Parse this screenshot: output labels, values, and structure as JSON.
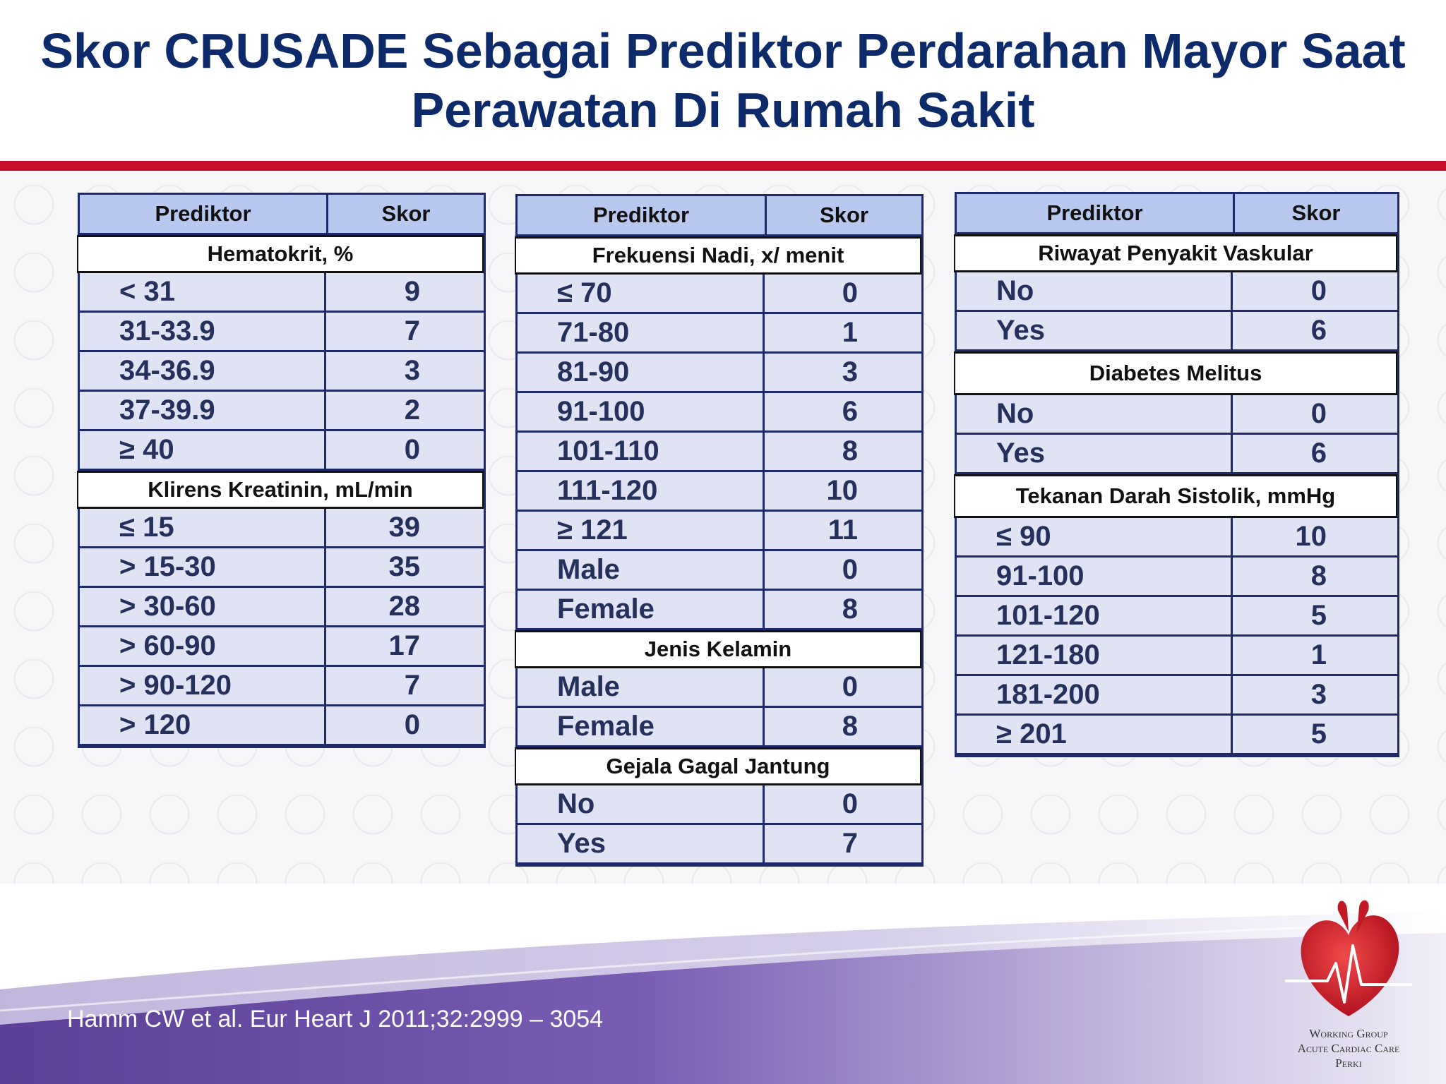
{
  "title": {
    "line1": "Skor CRUSADE Sebagai Prediktor Perdarahan Mayor Saat",
    "line2": "Perawatan Di Rumah Sakit"
  },
  "tables": [
    {
      "header": {
        "predictor": "Prediktor",
        "score": "Skor"
      },
      "sections": [
        {
          "label": "Hematokrit, %",
          "rows": [
            [
              "< 31",
              "9"
            ],
            [
              "31-33.9",
              "7"
            ],
            [
              "34-36.9",
              "3"
            ],
            [
              "37-39.9",
              "2"
            ],
            [
              "≥ 40",
              "0"
            ]
          ]
        },
        {
          "label": "Klirens Kreatinin, mL/min",
          "rows": [
            [
              "≤ 15",
              "39"
            ],
            [
              "> 15-30",
              "35"
            ],
            [
              "> 30-60",
              "28"
            ],
            [
              "> 60-90",
              "17"
            ],
            [
              "> 90-120",
              "7"
            ],
            [
              "> 120",
              "0"
            ]
          ]
        }
      ]
    },
    {
      "header": {
        "predictor": "Prediktor",
        "score": "Skor"
      },
      "sections": [
        {
          "label": "Frekuensi Nadi, x/ menit",
          "rows": [
            [
              "≤ 70",
              "0"
            ],
            [
              "71-80",
              "1"
            ],
            [
              "81-90",
              "3"
            ],
            [
              "91-100",
              "6"
            ],
            [
              "101-110",
              "8"
            ],
            [
              "111-120",
              "10"
            ],
            [
              "≥ 121",
              "11"
            ],
            [
              "Male",
              "0"
            ],
            [
              "Female",
              "8"
            ]
          ]
        },
        {
          "label": "Jenis Kelamin",
          "rows": [
            [
              "Male",
              "0"
            ],
            [
              "Female",
              "8"
            ]
          ]
        },
        {
          "label": "Gejala Gagal Jantung",
          "rows": [
            [
              "No",
              "0"
            ],
            [
              "Yes",
              "7"
            ]
          ]
        }
      ]
    },
    {
      "header": {
        "predictor": "Prediktor",
        "score": "Skor"
      },
      "sections": [
        {
          "label": "Riwayat Penyakit Vaskular",
          "rows": [
            [
              "No",
              "0"
            ],
            [
              "Yes",
              "6"
            ]
          ]
        },
        {
          "label": "Diabetes Melitus",
          "rows": [
            [
              "No",
              "0"
            ],
            [
              "Yes",
              "6"
            ]
          ]
        },
        {
          "label": "Tekanan Darah Sistolik, mmHg",
          "rows": [
            [
              "≤ 90",
              "10"
            ],
            [
              "91-100",
              "8"
            ],
            [
              "101-120",
              "5"
            ],
            [
              "121-180",
              "1"
            ],
            [
              "181-200",
              "3"
            ],
            [
              "≥ 201",
              "5"
            ]
          ]
        }
      ]
    }
  ],
  "citation": "Hamm CW et al. Eur Heart J 2011;32:2999 – 3054",
  "logo": {
    "line1": "Working Group",
    "line2": "Acute Cardiac Care",
    "line3": "Perki"
  },
  "colors": {
    "title": "#0d2a6b",
    "accent_bar": "#c8102e",
    "table_header": "#b9c8ef",
    "table_body": "#dfe3f4",
    "footer_purple": "#6a4fa3"
  }
}
